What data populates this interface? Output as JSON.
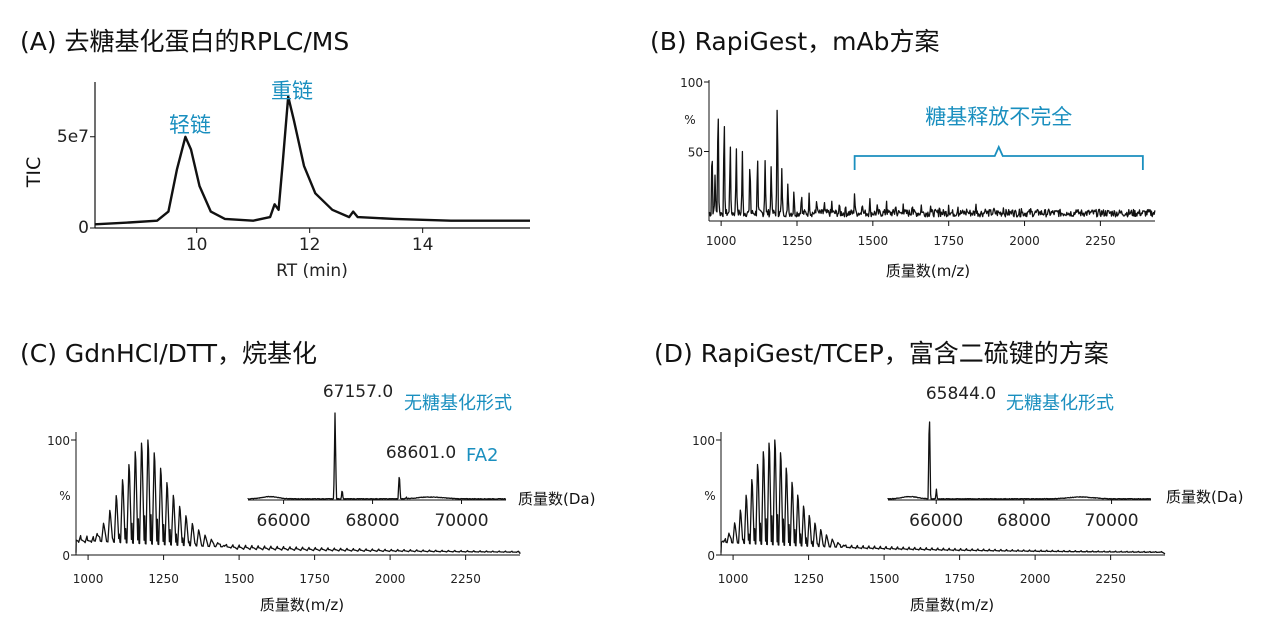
{
  "chart_data": [
    {
      "id": "A",
      "type": "line",
      "title": "(A) 去糖基化蛋白的RPLC/MS",
      "xlabel": "RT (min)",
      "ylabel": "TIC",
      "xlim": [
        8.2,
        15.9
      ],
      "ylim": [
        0,
        80000000.0
      ],
      "x_ticks": [
        10,
        12,
        14
      ],
      "x_tick_labels": [
        "10",
        "12",
        "14"
      ],
      "y_ticks": [
        0,
        50000000.0
      ],
      "y_tick_labels": [
        "0",
        "5e7"
      ],
      "grid": false,
      "annotations": [
        {
          "text": "轻链",
          "x": 9.8
        },
        {
          "text": "重链",
          "x": 11.6
        }
      ],
      "series": [
        {
          "points": [
            [
              8.2,
              2000000.0
            ],
            [
              8.8,
              3000000.0
            ],
            [
              9.3,
              4000000.0
            ],
            [
              9.5,
              9000000.0
            ],
            [
              9.65,
              32000000.0
            ],
            [
              9.8,
              50000000.0
            ],
            [
              9.9,
              43000000.0
            ],
            [
              10.05,
              23000000.0
            ],
            [
              10.25,
              9000000.0
            ],
            [
              10.5,
              5000000.0
            ],
            [
              11.0,
              4000000.0
            ],
            [
              11.3,
              6000000.0
            ],
            [
              11.38,
              13000000.0
            ],
            [
              11.45,
              10000000.0
            ],
            [
              11.52,
              35000000.0
            ],
            [
              11.62,
              72000000.0
            ],
            [
              11.72,
              59000000.0
            ],
            [
              11.9,
              34000000.0
            ],
            [
              12.1,
              19000000.0
            ],
            [
              12.4,
              10000000.0
            ],
            [
              12.7,
              6000000.0
            ],
            [
              12.77,
              9000000.0
            ],
            [
              12.85,
              6000000.0
            ],
            [
              13.5,
              5000000.0
            ],
            [
              14.5,
              4000000.0
            ],
            [
              15.9,
              4000000.0
            ]
          ]
        }
      ]
    },
    {
      "id": "B",
      "type": "line",
      "title": "(B) RapiGest，mAb方案",
      "xlabel": "质量数(m/z)",
      "ylabel": "%",
      "xlim": [
        960,
        2430
      ],
      "ylim": [
        0,
        100
      ],
      "x_ticks": [
        1000,
        1250,
        1500,
        1750,
        2000,
        2250
      ],
      "x_tick_labels": [
        "1000",
        "1250",
        "1500",
        "1750",
        "2000",
        "2250"
      ],
      "y_ticks": [
        50,
        100
      ],
      "y_tick_labels": [
        "50",
        "100"
      ],
      "grid": false,
      "annotations": [
        {
          "text": "糖基释放不完全",
          "x_range": [
            1440,
            2390
          ]
        }
      ],
      "series": [
        {
          "peaks": [
            [
              970,
              60
            ],
            [
              980,
              35
            ],
            [
              990,
              95
            ],
            [
              1010,
              82
            ],
            [
              1030,
              60
            ],
            [
              1050,
              55
            ],
            [
              1070,
              50
            ],
            [
              1095,
              48
            ],
            [
              1120,
              52
            ],
            [
              1145,
              46
            ],
            [
              1165,
              44
            ],
            [
              1185,
              96
            ],
            [
              1200,
              40
            ],
            [
              1220,
              30
            ],
            [
              1240,
              25
            ],
            [
              1265,
              22
            ],
            [
              1290,
              20
            ],
            [
              1315,
              18
            ],
            [
              1340,
              16
            ],
            [
              1365,
              15
            ],
            [
              1390,
              16
            ],
            [
              1410,
              14
            ],
            [
              1440,
              22
            ],
            [
              1465,
              15
            ],
            [
              1490,
              17
            ],
            [
              1515,
              14
            ],
            [
              1545,
              15
            ],
            [
              1575,
              14
            ],
            [
              1600,
              13
            ],
            [
              1630,
              14
            ],
            [
              1660,
              13
            ],
            [
              1690,
              12
            ],
            [
              1720,
              13
            ],
            [
              1750,
              12
            ],
            [
              1780,
              12
            ],
            [
              1810,
              11
            ],
            [
              1840,
              12
            ],
            [
              1870,
              11
            ],
            [
              1900,
              11
            ],
            [
              1930,
              10
            ],
            [
              1960,
              11
            ],
            [
              1990,
              10
            ],
            [
              2020,
              10
            ],
            [
              2050,
              9
            ],
            [
              2080,
              9
            ],
            [
              2110,
              9
            ],
            [
              2140,
              8
            ],
            [
              2170,
              8
            ],
            [
              2200,
              8
            ],
            [
              2230,
              7
            ],
            [
              2260,
              7
            ],
            [
              2290,
              7
            ],
            [
              2320,
              6
            ],
            [
              2350,
              6
            ],
            [
              2380,
              5
            ],
            [
              2410,
              5
            ]
          ],
          "baseline": 6
        }
      ]
    },
    {
      "id": "C",
      "type": "line",
      "title": "(C) GdnHCl/DTT，烷基化",
      "xlabel": "质量数(m/z)",
      "ylabel": "%",
      "xlim": [
        960,
        2430
      ],
      "ylim": [
        0,
        100
      ],
      "x_ticks": [
        1000,
        1250,
        1500,
        1750,
        2000,
        2250
      ],
      "x_tick_labels": [
        "1000",
        "1250",
        "1500",
        "1750",
        "2000",
        "2250"
      ],
      "y_ticks": [
        0,
        100
      ],
      "y_tick_labels": [
        "0",
        "100"
      ],
      "grid": false,
      "series": [
        {
          "envelope_center": 1200,
          "envelope_width": 165,
          "spacing": 21,
          "max": 100,
          "baseline": 12
        }
      ],
      "inset": {
        "xlabel": "质量数(Da)",
        "xlim": [
          65200,
          71000
        ],
        "x_ticks": [
          66000,
          68000,
          70000
        ],
        "x_tick_labels": [
          "66000",
          "68000",
          "70000"
        ],
        "peak_labels": [
          {
            "mass": "67157.0",
            "form": "无糖基化形式",
            "x": 67157,
            "height": 100
          },
          {
            "mass": "68601.0",
            "form": "FA2",
            "x": 68601,
            "height": 30
          }
        ]
      }
    },
    {
      "id": "D",
      "type": "line",
      "title": "(D) RapiGest/TCEP，富含二硫键的方案",
      "xlabel": "质量数(m/z)",
      "ylabel": "%",
      "xlim": [
        960,
        2430
      ],
      "ylim": [
        0,
        100
      ],
      "x_ticks": [
        1000,
        1250,
        1500,
        1750,
        2000,
        2250
      ],
      "x_tick_labels": [
        "1000",
        "1250",
        "1500",
        "1750",
        "2000",
        "2250"
      ],
      "y_ticks": [
        0,
        100
      ],
      "y_tick_labels": [
        "0",
        "100"
      ],
      "grid": false,
      "series": [
        {
          "envelope_center": 1140,
          "envelope_width": 150,
          "spacing": 19,
          "max": 100,
          "baseline": 10
        }
      ],
      "inset": {
        "xlabel": "质量数(Da)",
        "xlim": [
          64900,
          70900
        ],
        "x_ticks": [
          66000,
          68000,
          70000
        ],
        "x_tick_labels": [
          "66000",
          "68000",
          "70000"
        ],
        "peak_labels": [
          {
            "mass": "65844.0",
            "form": "无糖基化形式",
            "x": 65844,
            "height": 100
          }
        ]
      }
    }
  ]
}
